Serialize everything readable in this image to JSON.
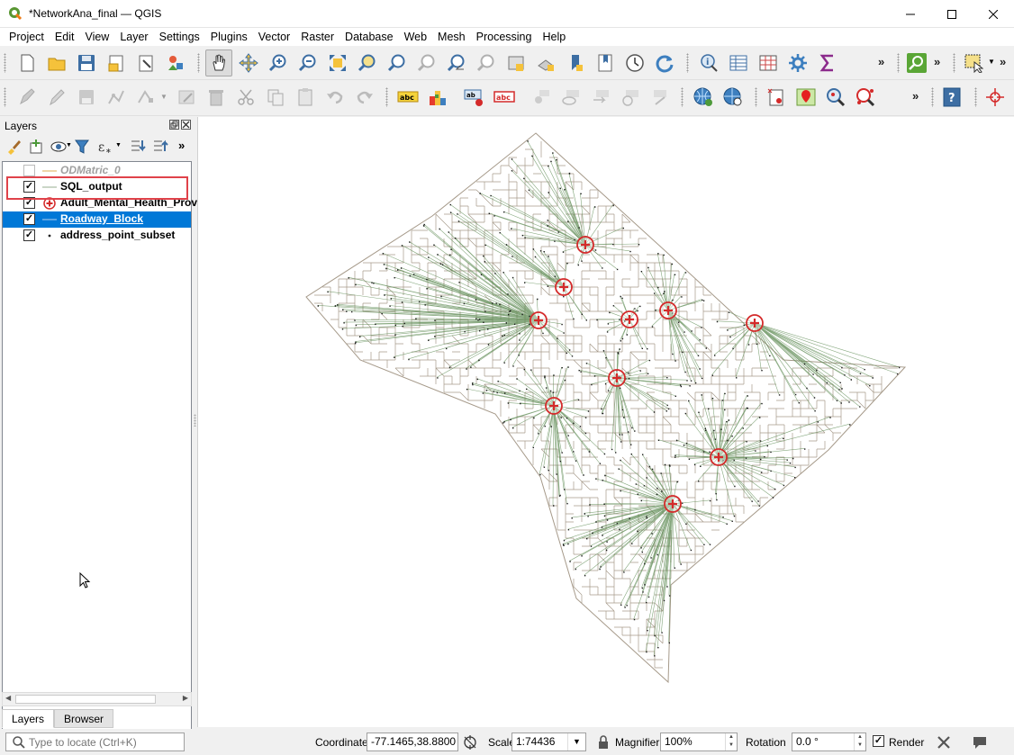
{
  "window": {
    "title": "*NetworkAna_final — QGIS",
    "controls": [
      "minimize",
      "maximize",
      "close"
    ]
  },
  "menu": [
    "Project",
    "Edit",
    "View",
    "Layer",
    "Settings",
    "Plugins",
    "Vector",
    "Raster",
    "Database",
    "Web",
    "Mesh",
    "Processing",
    "Help"
  ],
  "toolbars": {
    "overflow": "»"
  },
  "layers_panel": {
    "title": "Layers",
    "overflow": "»",
    "layers": [
      {
        "name": "ODMatric_0",
        "checked": false,
        "state": "disabled",
        "symbol": "line-icon"
      },
      {
        "name": "SQL_output",
        "checked": true,
        "state": "highlighted",
        "symbol": "line-icon"
      },
      {
        "name": "Adult_Mental_Health_Prov",
        "checked": true,
        "state": "normal",
        "symbol": "health-marker-icon"
      },
      {
        "name": "Roadway_Block",
        "checked": true,
        "state": "selected",
        "symbol": "line-icon"
      },
      {
        "name": "address_point_subset",
        "checked": true,
        "state": "normal",
        "symbol": "point-icon"
      }
    ],
    "tabs": [
      {
        "label": "Layers",
        "active": true
      },
      {
        "label": "Browser",
        "active": false
      }
    ],
    "check_mark": "✓"
  },
  "map": {
    "road_color": "#a69a8a",
    "line_color": "#5c8a52",
    "facility_color": "#d42a2a",
    "point_color": "#1a1a1a"
  },
  "status": {
    "locator_placeholder": "Type to locate (Ctrl+K)",
    "coordinate_label": "Coordinate",
    "coordinate_value": "-77.1465,38.8800",
    "scale_label": "Scale",
    "scale_value": "1:74436",
    "magnifier_label": "Magnifier",
    "magnifier_value": "100%",
    "rotation_label": "Rotation",
    "rotation_value": "0.0 °",
    "render_label": "Render",
    "render_checked": "✓"
  }
}
